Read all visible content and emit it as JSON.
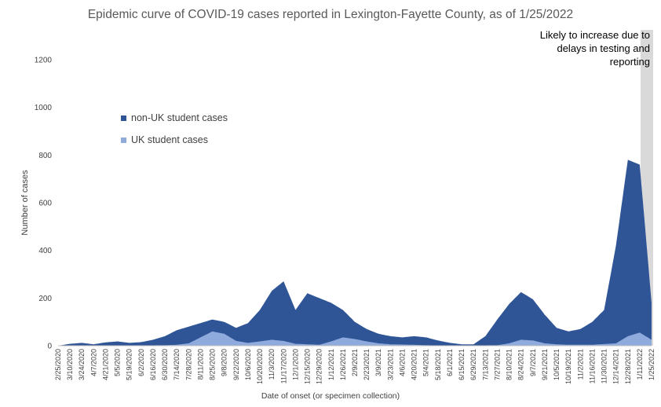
{
  "chart_data": {
    "type": "bar",
    "stacked": true,
    "title": "Epidemic curve of COVID-19 cases reported in Lexington-Fayette County, as of 1/25/2022",
    "xlabel": "Date of onset (or specimen collection)",
    "ylabel": "Number of cases",
    "ylim": [
      0,
      1200
    ],
    "yticks": [
      0,
      200,
      400,
      600,
      800,
      1000,
      1200
    ],
    "grid": false,
    "legend_position": "upper-left",
    "x_start": "2/25/2020",
    "x_end": "1/25/2022",
    "xticks": [
      "2/25/2020",
      "3/10/2020",
      "3/24/2020",
      "4/7/2020",
      "4/21/2020",
      "5/5/2020",
      "5/19/2020",
      "6/2/2020",
      "6/16/2020",
      "6/30/2020",
      "7/14/2020",
      "7/28/2020",
      "8/11/2020",
      "8/25/2020",
      "9/8/2020",
      "9/22/2020",
      "10/6/2020",
      "10/20/2020",
      "11/3/2020",
      "11/17/2020",
      "12/1/2020",
      "12/15/2020",
      "12/29/2020",
      "1/12/2021",
      "1/26/2021",
      "2/9/2021",
      "2/23/2021",
      "3/9/2021",
      "3/23/2021",
      "4/6/2021",
      "4/20/2021",
      "5/4/2021",
      "5/18/2021",
      "6/1/2021",
      "6/15/2021",
      "6/29/2021",
      "7/13/2021",
      "7/27/2021",
      "8/10/2021",
      "8/24/2021",
      "9/7/2021",
      "9/21/2021",
      "10/5/2021",
      "10/19/2021",
      "11/2/2021",
      "11/16/2021",
      "11/30/2021",
      "12/14/2021",
      "12/28/2021",
      "1/11/2022",
      "1/25/2022"
    ],
    "series": [
      {
        "name": "non-UK student cases",
        "color": "#2f5597",
        "curve": [
          [
            "2/25/2020",
            0
          ],
          [
            "3/10/2020",
            8
          ],
          [
            "3/24/2020",
            12
          ],
          [
            "4/7/2020",
            6
          ],
          [
            "4/21/2020",
            14
          ],
          [
            "5/5/2020",
            18
          ],
          [
            "5/19/2020",
            12
          ],
          [
            "6/2/2020",
            15
          ],
          [
            "6/16/2020",
            25
          ],
          [
            "6/30/2020",
            40
          ],
          [
            "7/14/2020",
            65
          ],
          [
            "7/28/2020",
            80
          ],
          [
            "8/11/2020",
            95
          ],
          [
            "8/25/2020",
            110
          ],
          [
            "9/8/2020",
            100
          ],
          [
            "9/22/2020",
            75
          ],
          [
            "10/6/2020",
            95
          ],
          [
            "10/20/2020",
            150
          ],
          [
            "11/3/2020",
            230
          ],
          [
            "11/17/2020",
            270
          ],
          [
            "12/1/2020",
            150
          ],
          [
            "12/15/2020",
            220
          ],
          [
            "12/29/2020",
            200
          ],
          [
            "1/12/2021",
            180
          ],
          [
            "1/26/2021",
            150
          ],
          [
            "2/9/2021",
            100
          ],
          [
            "2/23/2021",
            70
          ],
          [
            "3/9/2021",
            50
          ],
          [
            "3/23/2021",
            40
          ],
          [
            "4/6/2021",
            35
          ],
          [
            "4/20/2021",
            40
          ],
          [
            "5/4/2021",
            35
          ],
          [
            "5/18/2021",
            22
          ],
          [
            "6/1/2021",
            12
          ],
          [
            "6/15/2021",
            6
          ],
          [
            "6/29/2021",
            6
          ],
          [
            "7/13/2021",
            40
          ],
          [
            "7/27/2021",
            110
          ],
          [
            "8/10/2021",
            175
          ],
          [
            "8/24/2021",
            225
          ],
          [
            "9/7/2021",
            195
          ],
          [
            "9/21/2021",
            130
          ],
          [
            "10/5/2021",
            75
          ],
          [
            "10/19/2021",
            60
          ],
          [
            "11/2/2021",
            70
          ],
          [
            "11/16/2021",
            100
          ],
          [
            "11/30/2021",
            150
          ],
          [
            "12/14/2021",
            420
          ],
          [
            "12/28/2021",
            780
          ],
          [
            "1/11/2022",
            760
          ],
          [
            "1/25/2022",
            180
          ]
        ]
      },
      {
        "name": "UK student cases",
        "color": "#8faadc",
        "curve": [
          [
            "2/25/2020",
            0
          ],
          [
            "6/30/2020",
            2
          ],
          [
            "7/14/2020",
            4
          ],
          [
            "7/28/2020",
            10
          ],
          [
            "8/11/2020",
            35
          ],
          [
            "8/25/2020",
            60
          ],
          [
            "9/8/2020",
            50
          ],
          [
            "9/22/2020",
            20
          ],
          [
            "10/6/2020",
            12
          ],
          [
            "10/20/2020",
            18
          ],
          [
            "11/3/2020",
            25
          ],
          [
            "11/17/2020",
            20
          ],
          [
            "12/1/2020",
            8
          ],
          [
            "12/15/2020",
            6
          ],
          [
            "12/29/2020",
            4
          ],
          [
            "1/12/2021",
            18
          ],
          [
            "1/26/2021",
            35
          ],
          [
            "2/9/2021",
            28
          ],
          [
            "2/23/2021",
            18
          ],
          [
            "3/9/2021",
            10
          ],
          [
            "3/23/2021",
            6
          ],
          [
            "4/20/2021",
            4
          ],
          [
            "5/4/2021",
            2
          ],
          [
            "6/1/2021",
            1
          ],
          [
            "7/27/2021",
            2
          ],
          [
            "8/10/2021",
            10
          ],
          [
            "8/24/2021",
            25
          ],
          [
            "9/7/2021",
            22
          ],
          [
            "9/21/2021",
            10
          ],
          [
            "10/5/2021",
            6
          ],
          [
            "10/19/2021",
            4
          ],
          [
            "11/16/2021",
            4
          ],
          [
            "12/14/2021",
            10
          ],
          [
            "12/28/2021",
            40
          ],
          [
            "1/11/2022",
            55
          ],
          [
            "1/25/2022",
            25
          ]
        ]
      }
    ],
    "annotation": {
      "text": "Likely to increase due to delays in testing and reporting",
      "region_start": "1/12/2022",
      "region_end": "1/25/2022",
      "shade_color": "#d9d9d9"
    }
  },
  "y_axis_title": "Number of cases",
  "x_axis_title": "Date of onset (or specimen collection)"
}
